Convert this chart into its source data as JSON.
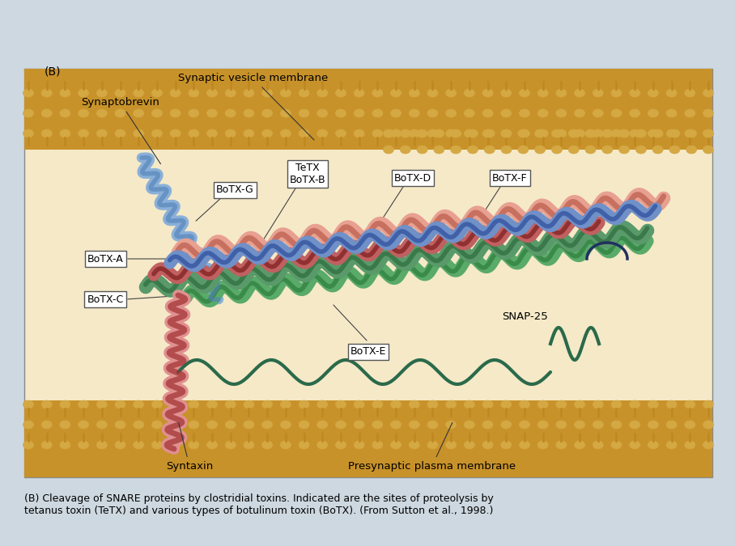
{
  "bg_color": "#cdd8e0",
  "diagram_bg": "#f5e9c8",
  "membrane_tan": "#c8922a",
  "membrane_light": "#e8c87a",
  "membrane_gold": "#d4a843",
  "vesicle_bg": "#e8c87a",
  "title_label": "(B)",
  "label_synaptic_vesicle": "Synaptic vesicle membrane",
  "label_synaptobrevin": "Synaptobrevin",
  "label_syntaxin": "Syntaxin",
  "label_presynaptic": "Presynaptic plasma membrane",
  "label_snap25": "SNAP-25",
  "caption": "(B) Cleavage of SNARE proteins by clostridial toxins. Indicated are the sites of proteolysis by\ntetanus toxin (TeTX) and various types of botulinum toxin (BoTX). (From Sutton et al., 1998.)",
  "box_labels": [
    "BoTX-G",
    "TeTX\nBoTX-B",
    "BoTX-D",
    "BoTX-F",
    "BoTX-A",
    "BoTX-C",
    "BoTX-E"
  ],
  "color_synaptobrevin": "#7090c0",
  "color_snap25_top": "#e8a0a0",
  "color_snap25_bottom": "#5a9a6a",
  "color_syntaxin": "#c05050",
  "color_helix_blue": "#5070b0",
  "color_helix_green": "#4a8a5a",
  "color_helix_pink": "#d08090",
  "color_helix_darkgreen": "#2a6a4a",
  "color_helix_salmon": "#e0a090"
}
